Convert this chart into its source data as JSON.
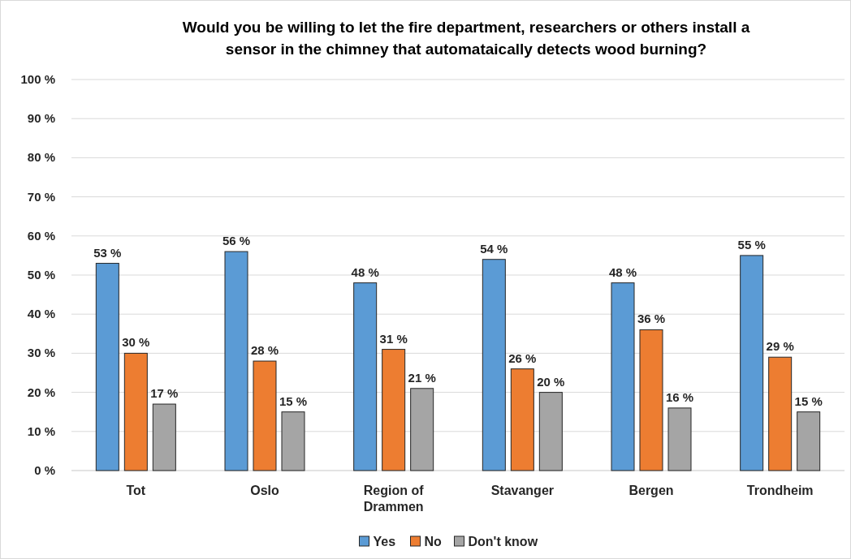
{
  "chart_data": {
    "type": "bar",
    "title": "Would you be willing to let the fire department, researchers or others install a sensor in the chimney that automataically detects wood burning?",
    "categories": [
      "Tot",
      "Oslo",
      "Region of Drammen",
      "Stavanger",
      "Bergen",
      "Trondheim"
    ],
    "series": [
      {
        "name": "Yes",
        "color": "#5b9bd5",
        "values": [
          53,
          56,
          48,
          54,
          48,
          55
        ],
        "value_labels": [
          "53 %",
          "56 %",
          "48 %",
          "54 %",
          "48 %",
          "55 %"
        ]
      },
      {
        "name": "No",
        "color": "#ed7d31",
        "values": [
          30,
          28,
          31,
          26,
          36,
          29
        ],
        "value_labels": [
          "30 %",
          "28 %",
          "31 %",
          "26 %",
          "36 %",
          "29 %"
        ]
      },
      {
        "name": "Don't know",
        "color": "#a5a5a5",
        "values": [
          17,
          15,
          21,
          20,
          16,
          15
        ],
        "value_labels": [
          "17 %",
          "15 %",
          "21 %",
          "20 %",
          "16 %",
          "15 %"
        ]
      }
    ],
    "ylim": [
      0,
      100
    ],
    "yticks": [
      {
        "value": 0,
        "label": "0 %"
      },
      {
        "value": 10,
        "label": "10 %"
      },
      {
        "value": 20,
        "label": "20 %"
      },
      {
        "value": 30,
        "label": "30 %"
      },
      {
        "value": 40,
        "label": "40 %"
      },
      {
        "value": 50,
        "label": "50 %"
      },
      {
        "value": 60,
        "label": "60 %"
      },
      {
        "value": 70,
        "label": "70 %"
      },
      {
        "value": 80,
        "label": "80 %"
      },
      {
        "value": 90,
        "label": "90 %"
      },
      {
        "value": 100,
        "label": "100 %"
      }
    ],
    "grid": "y",
    "legend": "bottom"
  }
}
